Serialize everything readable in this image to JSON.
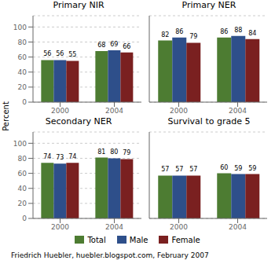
{
  "ylabel": "Percent",
  "subtitle": "Friedrich Huebler, huebler.blogspot.com, February 2007",
  "legend": "bottom",
  "chart_data": [
    {
      "type": "bar",
      "title": "Primary NIR",
      "categories": [
        "2000",
        "2004"
      ],
      "series": [
        {
          "name": "Total",
          "color": "#4d7c32",
          "values": [
            56,
            68
          ]
        },
        {
          "name": "Male",
          "color": "#2e4f8a",
          "values": [
            56,
            69
          ]
        },
        {
          "name": "Female",
          "color": "#7a2020",
          "values": [
            55,
            66
          ]
        }
      ],
      "ylim": [
        0,
        115
      ],
      "yticks": [
        0,
        20,
        40,
        60,
        80,
        100
      ],
      "grid": true,
      "data_labels": true
    },
    {
      "type": "bar",
      "title": "Primary NER",
      "categories": [
        "2000",
        "2004"
      ],
      "series": [
        {
          "name": "Total",
          "color": "#4d7c32",
          "values": [
            82,
            86
          ]
        },
        {
          "name": "Male",
          "color": "#2e4f8a",
          "values": [
            86,
            88
          ]
        },
        {
          "name": "Female",
          "color": "#7a2020",
          "values": [
            79,
            84
          ]
        }
      ],
      "ylim": [
        0,
        115
      ],
      "yticks": [
        0,
        20,
        40,
        60,
        80,
        100
      ],
      "grid": true,
      "data_labels": true,
      "tick_labels": "x"
    },
    {
      "type": "bar",
      "title": "Secondary NER",
      "categories": [
        "2000",
        "2004"
      ],
      "series": [
        {
          "name": "Total",
          "color": "#4d7c32",
          "values": [
            74,
            81
          ]
        },
        {
          "name": "Male",
          "color": "#2e4f8a",
          "values": [
            73,
            80
          ]
        },
        {
          "name": "Female",
          "color": "#7a2020",
          "values": [
            74,
            79
          ]
        }
      ],
      "ylim": [
        0,
        115
      ],
      "yticks": [
        0,
        20,
        40,
        60,
        80,
        100
      ],
      "grid": true,
      "data_labels": true
    },
    {
      "type": "bar",
      "title": "Survival to grade 5",
      "categories": [
        "2000",
        "2004"
      ],
      "series": [
        {
          "name": "Total",
          "color": "#4d7c32",
          "values": [
            57,
            60
          ]
        },
        {
          "name": "Male",
          "color": "#2e4f8a",
          "values": [
            57,
            59
          ]
        },
        {
          "name": "Female",
          "color": "#7a2020",
          "values": [
            57,
            59
          ]
        }
      ],
      "ylim": [
        0,
        115
      ],
      "yticks": [
        0,
        20,
        40,
        60,
        80,
        100
      ],
      "grid": true,
      "data_labels": true,
      "tick_labels": "x"
    }
  ]
}
